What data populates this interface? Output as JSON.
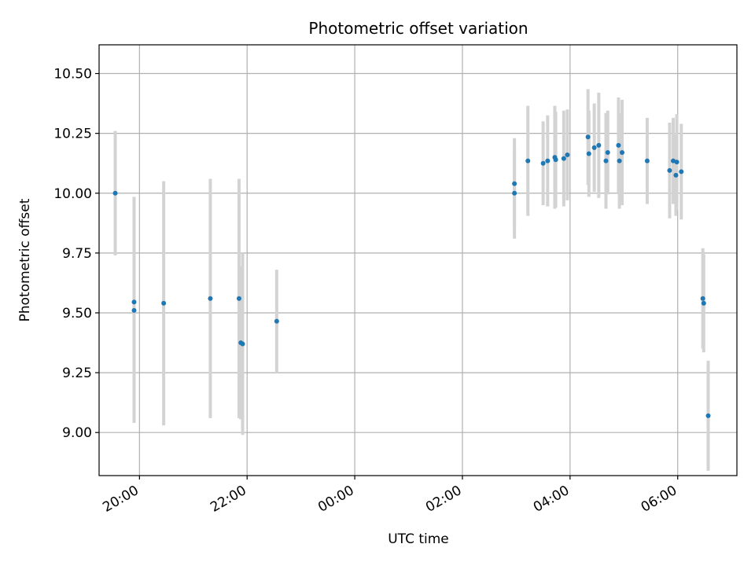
{
  "chart_data": {
    "type": "scatter",
    "title": "Photometric offset variation",
    "xlabel": "UTC time",
    "ylabel": "Photometric offset",
    "x_axis_type": "time",
    "x_range": [
      "2024-01-01T19:15",
      "2024-01-02T07:06"
    ],
    "ylim": [
      8.82,
      10.62
    ],
    "x_ticks": [
      {
        "t": "2024-01-01T20:00",
        "label": "20:00"
      },
      {
        "t": "2024-01-01T22:00",
        "label": "22:00"
      },
      {
        "t": "2024-01-02T00:00",
        "label": "00:00"
      },
      {
        "t": "2024-01-02T02:00",
        "label": "02:00"
      },
      {
        "t": "2024-01-02T04:00",
        "label": "04:00"
      },
      {
        "t": "2024-01-02T06:00",
        "label": "06:00"
      }
    ],
    "y_ticks": [
      {
        "v": 9.0,
        "label": "9.00"
      },
      {
        "v": 9.25,
        "label": "9.25"
      },
      {
        "v": 9.5,
        "label": "9.50"
      },
      {
        "v": 9.75,
        "label": "9.75"
      },
      {
        "v": 10.0,
        "label": "10.00"
      },
      {
        "v": 10.25,
        "label": "10.25"
      },
      {
        "v": 10.5,
        "label": "10.50"
      }
    ],
    "grid": true,
    "x_tick_rotation_deg": 30,
    "colors": {
      "points": "#1f77b4",
      "errorbars": "#d3d3d3",
      "grid": "#b0b0b0"
    },
    "points": [
      {
        "t": "2024-01-01T19:33",
        "y": 10.0,
        "err": 0.26
      },
      {
        "t": "2024-01-01T19:54",
        "y": 9.545,
        "err": 0.44
      },
      {
        "t": "2024-01-01T19:54",
        "y": 9.51,
        "err": 0.47
      },
      {
        "t": "2024-01-01T20:27",
        "y": 9.54,
        "err": 0.51
      },
      {
        "t": "2024-01-01T21:19",
        "y": 9.56,
        "err": 0.5
      },
      {
        "t": "2024-01-01T21:51",
        "y": 9.56,
        "err": 0.5
      },
      {
        "t": "2024-01-01T21:53",
        "y": 9.375,
        "err": 0.32
      },
      {
        "t": "2024-01-01T21:55",
        "y": 9.37,
        "err": 0.38
      },
      {
        "t": "2024-01-01T22:33",
        "y": 9.465,
        "err": 0.215
      },
      {
        "t": "2024-01-02T02:58",
        "y": 10.04,
        "err": 0.19
      },
      {
        "t": "2024-01-02T02:58",
        "y": 10.0,
        "err": 0.19
      },
      {
        "t": "2024-01-02T03:13",
        "y": 10.135,
        "err": 0.23
      },
      {
        "t": "2024-01-02T03:30",
        "y": 10.125,
        "err": 0.175
      },
      {
        "t": "2024-01-02T03:35",
        "y": 10.135,
        "err": 0.19
      },
      {
        "t": "2024-01-02T03:43",
        "y": 10.15,
        "err": 0.215
      },
      {
        "t": "2024-01-02T03:44",
        "y": 10.14,
        "err": 0.2
      },
      {
        "t": "2024-01-02T03:53",
        "y": 10.145,
        "err": 0.2
      },
      {
        "t": "2024-01-02T03:57",
        "y": 10.16,
        "err": 0.19
      },
      {
        "t": "2024-01-02T04:20",
        "y": 10.235,
        "err": 0.2
      },
      {
        "t": "2024-01-02T04:21",
        "y": 10.165,
        "err": 0.18
      },
      {
        "t": "2024-01-02T04:27",
        "y": 10.19,
        "err": 0.185
      },
      {
        "t": "2024-01-02T04:32",
        "y": 10.2,
        "err": 0.22
      },
      {
        "t": "2024-01-02T04:40",
        "y": 10.135,
        "err": 0.2
      },
      {
        "t": "2024-01-02T04:42",
        "y": 10.17,
        "err": 0.175
      },
      {
        "t": "2024-01-02T04:54",
        "y": 10.2,
        "err": 0.2
      },
      {
        "t": "2024-01-02T04:55",
        "y": 10.135,
        "err": 0.2
      },
      {
        "t": "2024-01-02T04:58",
        "y": 10.17,
        "err": 0.22
      },
      {
        "t": "2024-01-02T05:26",
        "y": 10.135,
        "err": 0.18
      },
      {
        "t": "2024-01-02T05:51",
        "y": 10.095,
        "err": 0.2
      },
      {
        "t": "2024-01-02T05:55",
        "y": 10.135,
        "err": 0.18
      },
      {
        "t": "2024-01-02T05:58",
        "y": 10.075,
        "err": 0.17
      },
      {
        "t": "2024-01-02T05:59",
        "y": 10.13,
        "err": 0.2
      },
      {
        "t": "2024-01-02T06:04",
        "y": 10.09,
        "err": 0.2
      },
      {
        "t": "2024-01-02T06:28",
        "y": 9.56,
        "err": 0.21
      },
      {
        "t": "2024-01-02T06:29",
        "y": 9.54,
        "err": 0.205
      },
      {
        "t": "2024-01-02T06:34",
        "y": 9.07,
        "err": 0.23
      }
    ]
  }
}
